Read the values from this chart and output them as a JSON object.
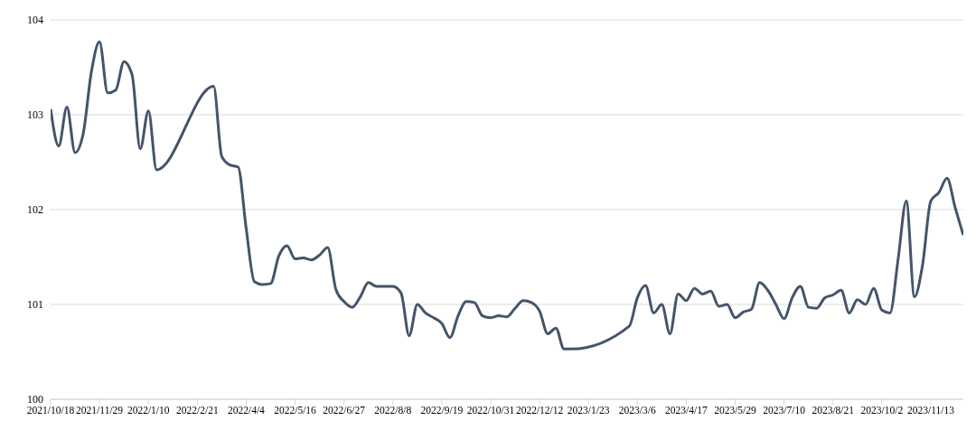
{
  "chart_data": {
    "type": "line",
    "xlim": [
      "2021-10-18",
      "2023-12-11"
    ],
    "xticks": [
      {
        "value": "2021-10-18",
        "label": "2021/10/18"
      },
      {
        "value": "2021-11-29",
        "label": "2021/11/29"
      },
      {
        "value": "2022-01-10",
        "label": "2022/1/10"
      },
      {
        "value": "2022-02-21",
        "label": "2022/2/21"
      },
      {
        "value": "2022-04-04",
        "label": "2022/4/4"
      },
      {
        "value": "2022-05-16",
        "label": "2022/5/16"
      },
      {
        "value": "2022-06-27",
        "label": "2022/6/27"
      },
      {
        "value": "2022-08-08",
        "label": "2022/8/8"
      },
      {
        "value": "2022-09-19",
        "label": "2022/9/19"
      },
      {
        "value": "2022-10-31",
        "label": "2022/10/31"
      },
      {
        "value": "2022-12-12",
        "label": "2022/12/12"
      },
      {
        "value": "2023-01-23",
        "label": "2023/1/23"
      },
      {
        "value": "2023-03-06",
        "label": "2023/3/6"
      },
      {
        "value": "2023-04-17",
        "label": "2023/4/17"
      },
      {
        "value": "2023-05-29",
        "label": "2023/5/29"
      },
      {
        "value": "2023-07-10",
        "label": "2023/7/10"
      },
      {
        "value": "2023-08-21",
        "label": "2023/8/21"
      },
      {
        "value": "2023-10-02",
        "label": "2023/10/2"
      },
      {
        "value": "2023-11-13",
        "label": "2023/11/13"
      }
    ],
    "ylim": [
      100,
      104
    ],
    "yticks": [
      100,
      101,
      102,
      103,
      104
    ],
    "grid": "y",
    "marker": "none",
    "line_style": "solid",
    "series": [
      {
        "color": "#44546a",
        "x": [
          "2021-10-18",
          "2021-10-25",
          "2021-11-01",
          "2021-11-08",
          "2021-11-15",
          "2021-11-22",
          "2021-11-29",
          "2021-12-06",
          "2021-12-13",
          "2021-12-20",
          "2021-12-27",
          "2022-01-03",
          "2022-01-10",
          "2022-01-17",
          "2022-03-07",
          "2022-03-14",
          "2022-03-21",
          "2022-03-28",
          "2022-04-04",
          "2022-04-11",
          "2022-04-18",
          "2022-04-25",
          "2022-05-02",
          "2022-05-09",
          "2022-05-16",
          "2022-05-23",
          "2022-05-30",
          "2022-06-06",
          "2022-06-13",
          "2022-06-20",
          "2022-06-27",
          "2022-07-04",
          "2022-07-11",
          "2022-07-18",
          "2022-07-25",
          "2022-08-01",
          "2022-08-08",
          "2022-08-15",
          "2022-08-22",
          "2022-08-29",
          "2022-09-05",
          "2022-09-12",
          "2022-09-19",
          "2022-09-26",
          "2022-10-03",
          "2022-10-10",
          "2022-10-17",
          "2022-10-24",
          "2022-10-31",
          "2022-11-07",
          "2022-11-14",
          "2022-11-21",
          "2022-11-28",
          "2022-12-05",
          "2022-12-12",
          "2022-12-19",
          "2022-12-26",
          "2023-01-02",
          "2023-01-09",
          "2023-02-27",
          "2023-03-06",
          "2023-03-13",
          "2023-03-20",
          "2023-03-27",
          "2023-04-03",
          "2023-04-10",
          "2023-04-17",
          "2023-04-24",
          "2023-05-01",
          "2023-05-08",
          "2023-05-15",
          "2023-05-22",
          "2023-05-29",
          "2023-06-05",
          "2023-06-12",
          "2023-06-19",
          "2023-06-26",
          "2023-07-03",
          "2023-07-10",
          "2023-07-17",
          "2023-07-24",
          "2023-07-31",
          "2023-08-07",
          "2023-08-14",
          "2023-08-21",
          "2023-08-28",
          "2023-09-04",
          "2023-09-11",
          "2023-09-18",
          "2023-09-25",
          "2023-10-02",
          "2023-10-09",
          "2023-10-16",
          "2023-10-23",
          "2023-10-30",
          "2023-11-06",
          "2023-11-13",
          "2023-11-20",
          "2023-11-27",
          "2023-12-04",
          "2023-12-11"
        ],
        "values": [
          103.06,
          102.67,
          103.08,
          102.6,
          102.8,
          103.45,
          103.77,
          103.23,
          103.26,
          103.56,
          103.42,
          102.64,
          103.04,
          102.42,
          103.3,
          102.56,
          102.47,
          102.45,
          101.8,
          101.24,
          101.21,
          101.22,
          101.51,
          101.62,
          101.48,
          101.49,
          101.47,
          101.52,
          101.6,
          101.16,
          101.03,
          100.97,
          101.08,
          101.23,
          101.19,
          101.19,
          101.19,
          101.12,
          100.67,
          101.0,
          100.91,
          100.86,
          100.8,
          100.65,
          100.88,
          101.03,
          101.02,
          100.88,
          100.86,
          100.88,
          100.87,
          100.96,
          101.04,
          101.02,
          100.93,
          100.69,
          100.75,
          100.53,
          100.53,
          100.77,
          101.07,
          101.2,
          100.91,
          101.0,
          100.69,
          101.11,
          101.04,
          101.17,
          101.11,
          101.14,
          100.98,
          101.0,
          100.86,
          100.92,
          100.95,
          101.23,
          101.15,
          101.0,
          100.85,
          101.07,
          101.19,
          100.97,
          100.96,
          101.07,
          101.1,
          101.15,
          100.91,
          101.05,
          101.0,
          101.17,
          100.94,
          100.91,
          101.48,
          102.09,
          101.08,
          101.42,
          102.09,
          102.18,
          102.33,
          102.02,
          101.73
        ]
      }
    ]
  }
}
